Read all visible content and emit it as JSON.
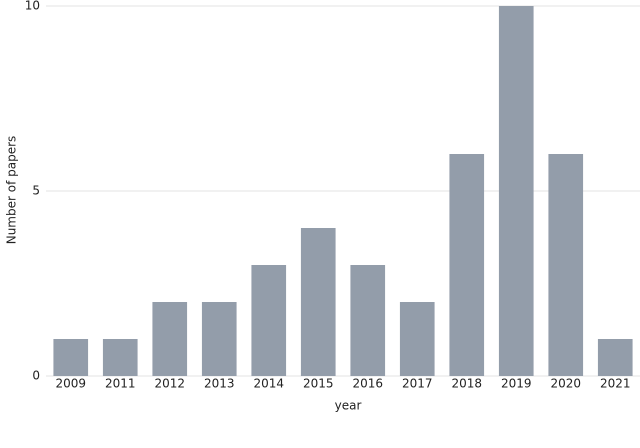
{
  "chart_data": {
    "type": "bar",
    "xlabel": "year",
    "ylabel": "Number of papers",
    "categories": [
      "2009",
      "2011",
      "2012",
      "2013",
      "2014",
      "2015",
      "2016",
      "2017",
      "2018",
      "2019",
      "2020",
      "2021"
    ],
    "values": [
      1,
      1,
      2,
      2,
      3,
      4,
      3,
      2,
      6,
      10,
      6,
      1
    ],
    "color": "#939daa",
    "ylim": [
      0,
      10
    ],
    "yticks": [
      0,
      5,
      10
    ],
    "grid": true
  }
}
